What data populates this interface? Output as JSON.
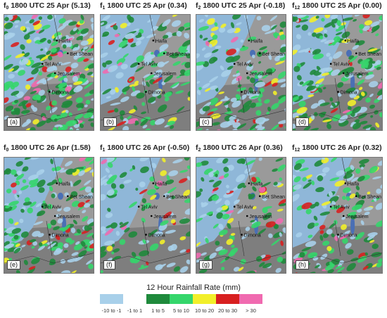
{
  "panels": [
    {
      "func": "f",
      "sub": "0",
      "rest": " 1800 UTC 25 Apr (5.13)",
      "letter": "(a)",
      "intensity": 0.9,
      "seed": 1
    },
    {
      "func": "f",
      "sub": "1",
      "rest": " 1800 UTC 25 Apr (0.34)",
      "letter": "(b)",
      "intensity": 0.45,
      "seed": 2
    },
    {
      "func": "f",
      "sub": "2",
      "rest": " 1800 UTC 25 Apr (-0.18)",
      "letter": "(c)",
      "intensity": 0.55,
      "seed": 3
    },
    {
      "func": "f",
      "sub": "12",
      "rest": " 1800 UTC 25 Apr (0.00)",
      "letter": "(d)",
      "intensity": 0.7,
      "seed": 4
    },
    {
      "func": "f",
      "sub": "0",
      "rest": " 1800 UTC 26 Apr (1.58)",
      "letter": "(e)",
      "intensity": 0.6,
      "seed": 5
    },
    {
      "func": "f",
      "sub": "1",
      "rest": " 1800 UTC 26 Apr (-0.50)",
      "letter": "(f)",
      "intensity": 0.3,
      "seed": 6
    },
    {
      "func": "f",
      "sub": "2",
      "rest": " 1800 UTC 26 Apr (0.36)",
      "letter": "(g)",
      "intensity": 0.4,
      "seed": 7
    },
    {
      "func": "f",
      "sub": "12",
      "rest": " 1800 UTC 26 Apr (0.32)",
      "letter": "(h)",
      "intensity": 0.45,
      "seed": 8
    }
  ],
  "cities": [
    "Haifa",
    "Bet Shean",
    "Tel Aviv",
    "Jerusalem",
    "Dimona"
  ],
  "legend": {
    "title": "12 Hour Rainfall Rate (mm)",
    "labels": [
      "-10 to -1",
      "-1 to 1",
      "1 to 5",
      "5 to 10",
      "10 to 20",
      "20 to 30",
      "> 30"
    ],
    "colors": [
      "#a8d0ea",
      "#ffffff",
      "#1f8a3c",
      "#35d66b",
      "#f2ef2a",
      "#d82020",
      "#f06ab0"
    ]
  },
  "chart_data": {
    "type": "heatmap",
    "panels": [
      {
        "label": "(a)",
        "field": "f0",
        "date": "1800 UTC 25 Apr",
        "value": 5.13
      },
      {
        "label": "(b)",
        "field": "f1",
        "date": "1800 UTC 25 Apr",
        "value": 0.34
      },
      {
        "label": "(c)",
        "field": "f2",
        "date": "1800 UTC 25 Apr",
        "value": -0.18
      },
      {
        "label": "(d)",
        "field": "f12",
        "date": "1800 UTC 25 Apr",
        "value": 0.0
      },
      {
        "label": "(e)",
        "field": "f0",
        "date": "1800 UTC 26 Apr",
        "value": 1.58
      },
      {
        "label": "(f)",
        "field": "f1",
        "date": "1800 UTC 26 Apr",
        "value": -0.5
      },
      {
        "label": "(g)",
        "field": "f2",
        "date": "1800 UTC 26 Apr",
        "value": 0.36
      },
      {
        "label": "(h)",
        "field": "f12",
        "date": "1800 UTC 26 Apr",
        "value": 0.32
      }
    ],
    "colorbar": {
      "title": "12 Hour Rainfall Rate (mm)",
      "bins": [
        "-10 to -1",
        "-1 to 1",
        "1 to 5",
        "5 to 10",
        "10 to 20",
        "20 to 30",
        "> 30"
      ]
    }
  }
}
